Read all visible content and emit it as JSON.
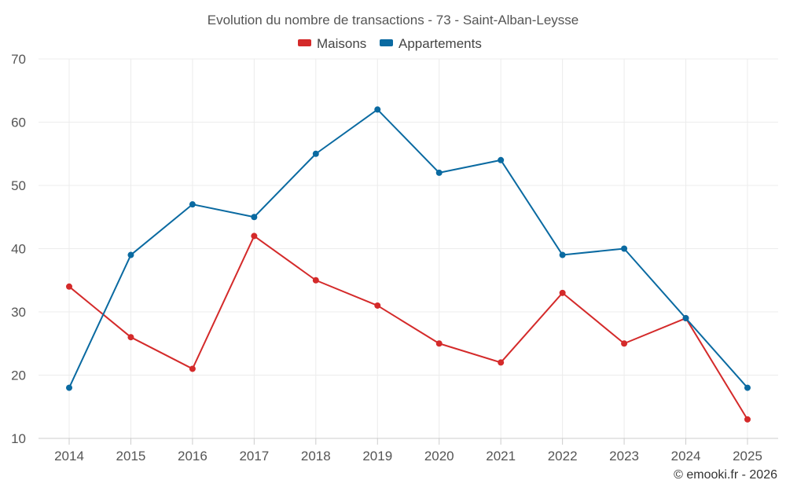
{
  "chart_data": {
    "type": "line",
    "title": "Evolution du nombre de transactions - 73 - Saint-Alban-Leysse",
    "categories": [
      "2014",
      "2015",
      "2016",
      "2017",
      "2018",
      "2019",
      "2020",
      "2021",
      "2022",
      "2023",
      "2024",
      "2025"
    ],
    "series": [
      {
        "name": "Maisons",
        "color": "#d42a2a",
        "values": [
          34,
          26,
          21,
          42,
          35,
          31,
          25,
          22,
          33,
          25,
          29,
          13
        ]
      },
      {
        "name": "Appartements",
        "color": "#0a6aa1",
        "values": [
          18,
          39,
          47,
          45,
          55,
          62,
          52,
          54,
          39,
          40,
          29,
          18
        ]
      }
    ],
    "ylim": [
      10,
      70
    ],
    "yticks": [
      10,
      20,
      30,
      40,
      50,
      60,
      70
    ],
    "grid": true,
    "legend_position": "top-center",
    "xlabel": "",
    "ylabel": ""
  },
  "credit": "© emooki.fr - 2026"
}
